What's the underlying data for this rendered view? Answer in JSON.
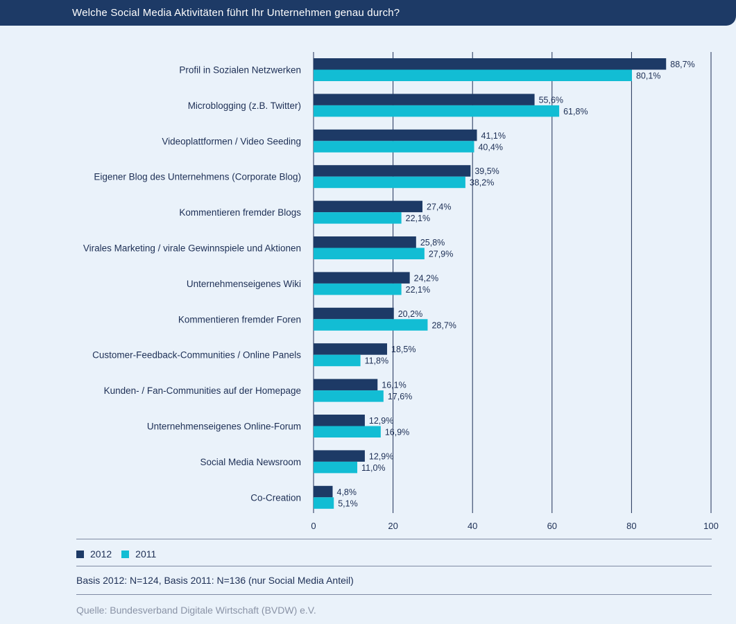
{
  "header": {
    "title": "Welche Social Media Aktivitäten führt Ihr Unternehmen genau durch?"
  },
  "colors": {
    "s2012": "#1d3a66",
    "s2011": "#12bdd4",
    "grid": "#1d2f55"
  },
  "chart_data": {
    "type": "bar",
    "orientation": "horizontal",
    "title": "Welche Social Media Aktivitäten führt Ihr Unternehmen genau durch?",
    "xlim": [
      0,
      100
    ],
    "xticks": [
      "0",
      "20",
      "40",
      "60",
      "80",
      "100"
    ],
    "xtick_values": [
      0,
      20,
      40,
      60,
      80,
      100
    ],
    "categories": [
      "Profil in Sozialen Netzwerken",
      "Microblogging (z.B. Twitter)",
      "Videoplattformen / Video Seeding",
      "Eigener Blog des Unternehmens (Corporate Blog)",
      "Kommentieren fremder Blogs",
      "Virales Marketing / virale Gewinnspiele und Aktionen",
      "Unternehmenseigenes Wiki",
      "Kommentieren fremder Foren",
      "Customer-Feedback-Communities / Online Panels",
      "Kunden- / Fan-Communities auf der Homepage",
      "Unternehmenseigenes Online-Forum",
      "Social Media Newsroom",
      "Co-Creation"
    ],
    "series": [
      {
        "name": "2012",
        "values": [
          88.7,
          55.6,
          41.1,
          39.5,
          27.4,
          25.8,
          24.2,
          20.2,
          18.5,
          16.1,
          12.9,
          12.9,
          4.8
        ],
        "labels": [
          "88,7%",
          "55,6%",
          "41,1%",
          "39,5%",
          "27,4%",
          "25,8%",
          "24,2%",
          "20,2%",
          "18,5%",
          "16,1%",
          "12,9%",
          "12,9%",
          "4,8%"
        ]
      },
      {
        "name": "2011",
        "values": [
          80.1,
          61.8,
          40.4,
          38.2,
          22.1,
          27.9,
          22.1,
          28.7,
          11.8,
          17.6,
          16.9,
          11.0,
          5.1
        ],
        "labels": [
          "80,1%",
          "61,8%",
          "40,4%",
          "38,2%",
          "22,1%",
          "27,9%",
          "22,1%",
          "28,7%",
          "11,8%",
          "17,6%",
          "16,9%",
          "11,0%",
          "5,1%"
        ]
      }
    ]
  },
  "legend": {
    "label_2012": "2012",
    "label_2011": "2011"
  },
  "footer": {
    "basis": "Basis 2012: N=124, Basis 2011: N=136 (nur Social Media Anteil)",
    "source": "Quelle: Bundesverband Digitale Wirtschaft (BVDW) e.V."
  }
}
